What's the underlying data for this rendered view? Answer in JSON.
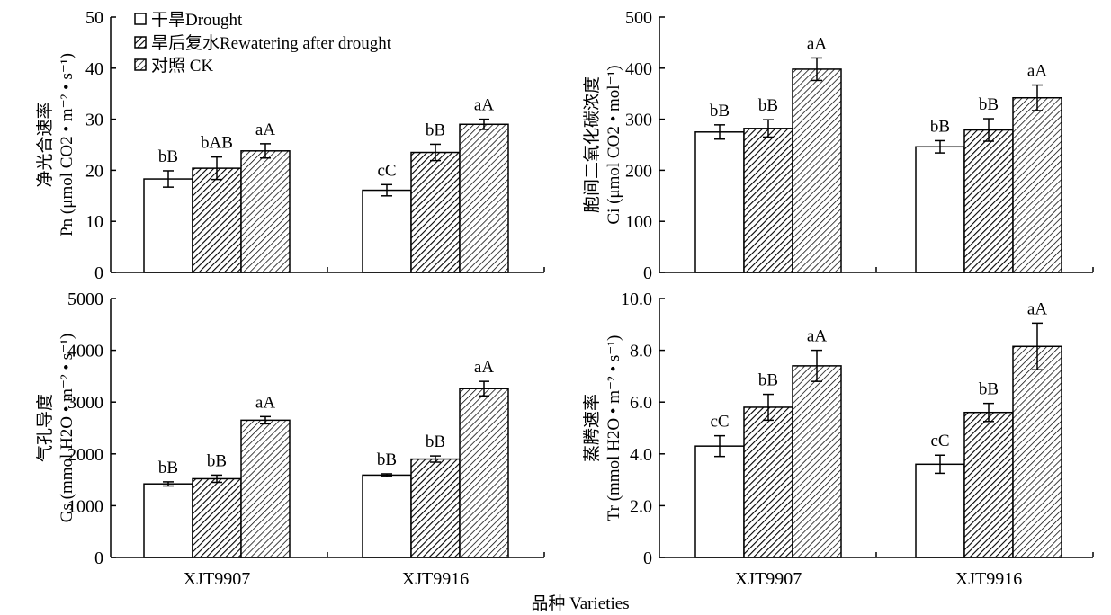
{
  "x_axis_title": "品种 Varieties",
  "legend": [
    {
      "label": "干旱Drought",
      "pattern": "none"
    },
    {
      "label": "旱后复水Rewatering after drought",
      "pattern": "diag-fine"
    },
    {
      "label": "对照 CK",
      "pattern": "diag-coarse"
    }
  ],
  "chart_data": [
    {
      "type": "bar",
      "ylabel_lines": [
        "净光合速率",
        "Pn (μmol CO2 • m⁻² • s⁻¹)"
      ],
      "categories": [
        "XJT9907",
        "XJT9916"
      ],
      "ylim": [
        0,
        50
      ],
      "yticks": [
        0,
        10,
        20,
        30,
        40,
        50
      ],
      "tick_labels": [
        "0",
        "10",
        "20",
        "30",
        "40",
        "50"
      ],
      "series": [
        {
          "name": "干旱Drought",
          "values": [
            18.3,
            16.1
          ],
          "errors": [
            1.6,
            1.1
          ],
          "labels": [
            "bB",
            "cC"
          ]
        },
        {
          "name": "旱后复水Rewatering after drought",
          "values": [
            20.4,
            23.5
          ],
          "errors": [
            2.2,
            1.6
          ],
          "labels": [
            "bAB",
            "bB"
          ]
        },
        {
          "name": "对照 CK",
          "values": [
            23.8,
            29.0
          ],
          "errors": [
            1.4,
            1.0
          ],
          "labels": [
            "aA",
            "aA"
          ]
        }
      ],
      "grid": false
    },
    {
      "type": "bar",
      "ylabel_lines": [
        "胞间二氧化碳浓度",
        "Ci (μmol CO2 • mol⁻¹)"
      ],
      "categories": [
        "XJT9907",
        "XJT9916"
      ],
      "ylim": [
        0,
        500
      ],
      "yticks": [
        0,
        100,
        200,
        300,
        400,
        500
      ],
      "tick_labels": [
        "0",
        "100",
        "200",
        "300",
        "400",
        "500"
      ],
      "series": [
        {
          "name": "干旱Drought",
          "values": [
            275,
            246
          ],
          "errors": [
            14,
            12
          ],
          "labels": [
            "bB",
            "bB"
          ]
        },
        {
          "name": "旱后复水Rewatering after drought",
          "values": [
            282,
            279
          ],
          "errors": [
            17,
            22
          ],
          "labels": [
            "bB",
            "bB"
          ]
        },
        {
          "name": "对照 CK",
          "values": [
            398,
            342
          ],
          "errors": [
            22,
            25
          ],
          "labels": [
            "aA",
            "aA"
          ]
        }
      ],
      "grid": false
    },
    {
      "type": "bar",
      "ylabel_lines": [
        "气孔导度",
        "Gs (mmol H2O • m⁻² • s⁻¹)"
      ],
      "categories": [
        "XJT9907",
        "XJT9916"
      ],
      "ylim": [
        0,
        5000
      ],
      "yticks": [
        0,
        1000,
        2000,
        3000,
        4000,
        5000
      ],
      "tick_labels": [
        "0",
        "1000",
        "2000",
        "3000",
        "4000",
        "5000"
      ],
      "series": [
        {
          "name": "干旱Drought",
          "values": [
            1420,
            1590
          ],
          "errors": [
            40,
            25
          ],
          "labels": [
            "bB",
            "bB"
          ]
        },
        {
          "name": "旱后复水Rewatering after drought",
          "values": [
            1520,
            1900
          ],
          "errors": [
            70,
            60
          ],
          "labels": [
            "bB",
            "bB"
          ]
        },
        {
          "name": "对照 CK",
          "values": [
            2650,
            3260
          ],
          "errors": [
            70,
            140
          ],
          "labels": [
            "aA",
            "aA"
          ]
        }
      ],
      "grid": false
    },
    {
      "type": "bar",
      "ylabel_lines": [
        "蒸腾速率",
        "Tr (mmol H2O • m⁻² • s⁻¹)"
      ],
      "categories": [
        "XJT9907",
        "XJT9916"
      ],
      "ylim": [
        0,
        10
      ],
      "yticks": [
        0,
        2,
        4,
        6,
        8,
        10
      ],
      "tick_labels": [
        "0",
        "2.0",
        "4.0",
        "6.0",
        "8.0",
        "10.0"
      ],
      "series": [
        {
          "name": "干旱Drought",
          "values": [
            4.3,
            3.6
          ],
          "errors": [
            0.4,
            0.35
          ],
          "labels": [
            "cC",
            "cC"
          ]
        },
        {
          "name": "旱后复水Rewatering after drought",
          "values": [
            5.8,
            5.6
          ],
          "errors": [
            0.5,
            0.35
          ],
          "labels": [
            "bB",
            "bB"
          ]
        },
        {
          "name": "对照 CK",
          "values": [
            7.4,
            8.15
          ],
          "errors": [
            0.6,
            0.9
          ],
          "labels": [
            "aA",
            "aA"
          ]
        }
      ],
      "grid": false
    }
  ]
}
